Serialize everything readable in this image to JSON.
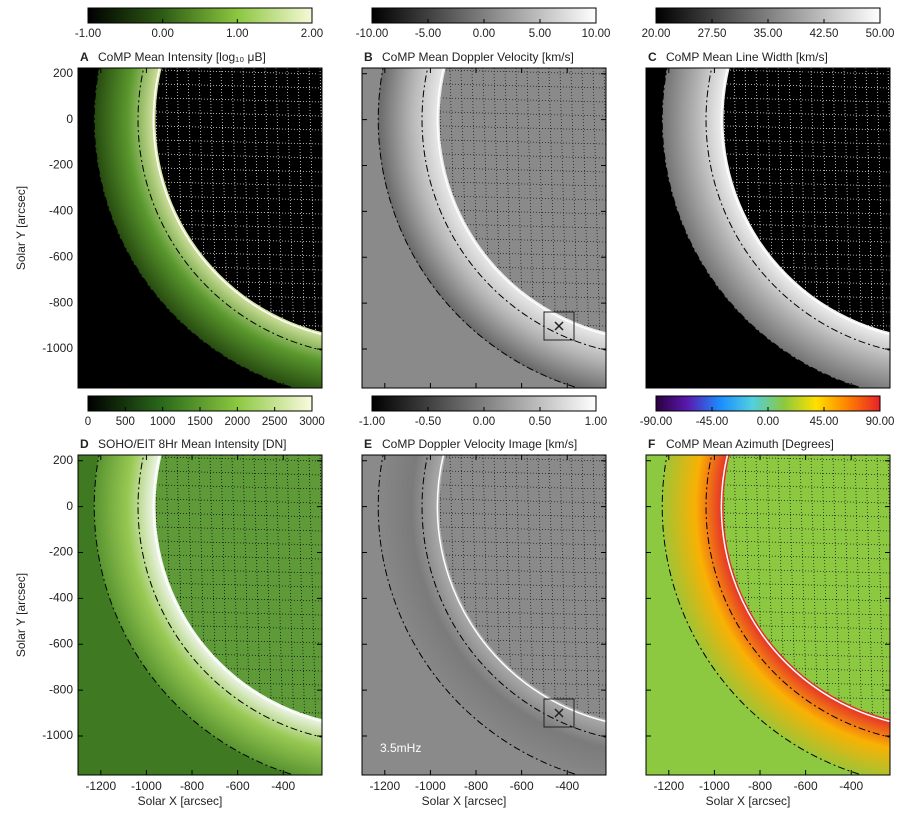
{
  "chart_data": [
    {
      "type": "image",
      "letter": "A",
      "title": "CoMP Mean Intensity [log₁₀ μB]",
      "ylabel": "Solar Y [arcsec]",
      "xlim": [
        -1300,
        -230
      ],
      "ylim": [
        -1170,
        225
      ],
      "xticks": [
        -1200,
        -1000,
        -800,
        -600,
        -400
      ],
      "yticks": [
        200,
        0,
        -200,
        -400,
        -600,
        -800,
        -1000
      ],
      "cmap": [
        "#000000",
        "#2e5c14",
        "#8cc63f",
        "#f6f9d8"
      ],
      "clim": [
        -1,
        2
      ],
      "cticks": [
        {
          "value": -1,
          "label": "-1.00"
        },
        {
          "value": 0,
          "label": "0.00"
        },
        {
          "value": 1,
          "label": "1.00"
        },
        {
          "value": 2,
          "label": "2.00"
        }
      ]
    },
    {
      "type": "image",
      "letter": "B",
      "title": "CoMP Mean Doppler Velocity [km/s]",
      "xlim": [
        -1300,
        -230
      ],
      "ylim": [
        -1170,
        225
      ],
      "xticks": [
        -1200,
        -1000,
        -800,
        -600,
        -400
      ],
      "yticks": [
        200,
        0,
        -200,
        -400,
        -600,
        -800,
        -1000
      ],
      "cmap": [
        "#000000",
        "#ffffff"
      ],
      "clim": [
        -10,
        10
      ],
      "cticks": [
        {
          "value": -10,
          "label": "-10.00"
        },
        {
          "value": -5,
          "label": "-5.00"
        },
        {
          "value": 0,
          "label": "0.00"
        },
        {
          "value": 5,
          "label": "5.00"
        },
        {
          "value": 10,
          "label": "10.00"
        }
      ]
    },
    {
      "type": "image",
      "letter": "C",
      "title": "CoMP Mean Line Width [km/s]",
      "xlim": [
        -1300,
        -230
      ],
      "ylim": [
        -1170,
        225
      ],
      "xticks": [
        -1200,
        -1000,
        -800,
        -600,
        -400
      ],
      "yticks": [
        200,
        0,
        -200,
        -400,
        -600,
        -800,
        -1000
      ],
      "cmap": [
        "#000000",
        "#ffffff"
      ],
      "clim": [
        20,
        50
      ],
      "cticks": [
        {
          "value": 20,
          "label": "20.00"
        },
        {
          "value": 27.5,
          "label": "27.50"
        },
        {
          "value": 35,
          "label": "35.00"
        },
        {
          "value": 42.5,
          "label": "42.50"
        },
        {
          "value": 50,
          "label": "50.00"
        }
      ]
    },
    {
      "type": "image",
      "letter": "D",
      "title": "SOHO/EIT 8Hr Mean Intensity [DN]",
      "ylabel": "Solar Y [arcsec]",
      "xlabel": "Solar X [arcsec]",
      "xlim": [
        -1300,
        -230
      ],
      "ylim": [
        -1170,
        225
      ],
      "xticks": [
        -1200,
        -1000,
        -800,
        -600,
        -400
      ],
      "yticks": [
        200,
        0,
        -200,
        -400,
        -600,
        -800,
        -1000
      ],
      "cmap": [
        "#000000",
        "#2a6a1a",
        "#8cc840",
        "#fbfbe0"
      ],
      "clim": [
        0,
        3000
      ],
      "cticks": [
        0,
        500,
        1000,
        1500,
        2000,
        2500,
        3000
      ]
    },
    {
      "type": "image",
      "letter": "E",
      "title": "CoMP Doppler Velocity Image [km/s]",
      "xlabel": "Solar X [arcsec]",
      "annotation": "3.5mHz",
      "xlim": [
        -1300,
        -230
      ],
      "ylim": [
        -1170,
        225
      ],
      "xticks": [
        -1200,
        -1000,
        -800,
        -600,
        -400
      ],
      "yticks": [
        200,
        0,
        -200,
        -400,
        -600,
        -800,
        -1000
      ],
      "cmap": [
        "#000000",
        "#ffffff"
      ],
      "clim": [
        -1,
        1
      ],
      "cticks": [
        {
          "value": -1,
          "label": "-1.00"
        },
        {
          "value": -0.5,
          "label": "-0.50"
        },
        {
          "value": 0,
          "label": "0.00"
        },
        {
          "value": 0.5,
          "label": "0.50"
        },
        {
          "value": 1,
          "label": "1.00"
        }
      ]
    },
    {
      "type": "image",
      "letter": "F",
      "title": "CoMP Mean Azimuth [Degrees]",
      "xlabel": "Solar X [arcsec]",
      "xlim": [
        -1300,
        -230
      ],
      "ylim": [
        -1170,
        225
      ],
      "xticks": [
        -1200,
        -1000,
        -800,
        -600,
        -400
      ],
      "yticks": [
        200,
        0,
        -200,
        -400,
        -600,
        -800,
        -1000
      ],
      "cmap": [
        "#2b0040",
        "#5a1ab0",
        "#1a8cff",
        "#50d0e0",
        "#8cc840",
        "#ffe000",
        "#ff8000",
        "#e8202a"
      ],
      "clim": [
        -90,
        90
      ],
      "cticks": [
        {
          "value": -90,
          "label": "-90.00"
        },
        {
          "value": -45,
          "label": "-45.00"
        },
        {
          "value": 0,
          "label": "0.00"
        },
        {
          "value": 45,
          "label": "45.00"
        },
        {
          "value": 90,
          "label": "90.00"
        }
      ]
    }
  ]
}
